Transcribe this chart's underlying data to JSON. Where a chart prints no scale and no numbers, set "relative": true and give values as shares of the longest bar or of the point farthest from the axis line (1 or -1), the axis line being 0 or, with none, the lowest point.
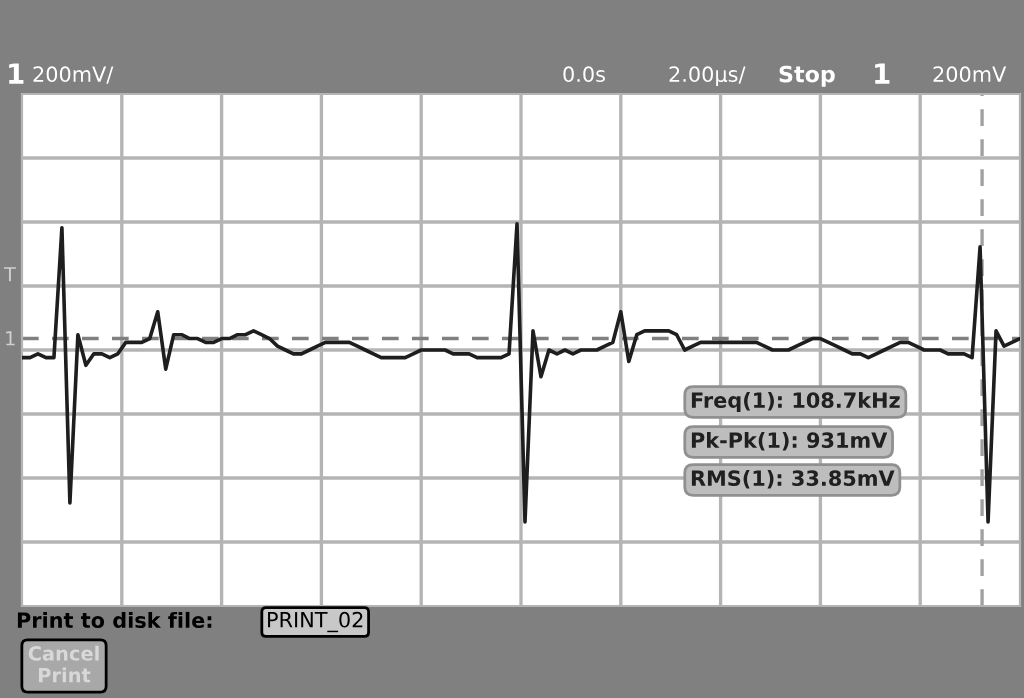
{
  "chart_data": {
    "type": "line",
    "relative": true,
    "grid": true,
    "categories": [
      null,
      null,
      null,
      null,
      null,
      null,
      null,
      null,
      null,
      null,
      null,
      null,
      null,
      null,
      null,
      null,
      null,
      null,
      null,
      null,
      null,
      null,
      null,
      null,
      null,
      null,
      null,
      null,
      null,
      null,
      null,
      null,
      null,
      null,
      null,
      null,
      null,
      null,
      null,
      null,
      null,
      null,
      null,
      null,
      null,
      null,
      null,
      null,
      null,
      null,
      null,
      null,
      null,
      null,
      null,
      null,
      null,
      null,
      null,
      null,
      null,
      null,
      null,
      null,
      null,
      null,
      null,
      null,
      null,
      null,
      null,
      null,
      null,
      null,
      null,
      null,
      null,
      null,
      null,
      null,
      null,
      null,
      null,
      null,
      null,
      null,
      null,
      null,
      null,
      null,
      null,
      null,
      null,
      null,
      null,
      null,
      null,
      null,
      null,
      null,
      null,
      null,
      null,
      null,
      null,
      null,
      null,
      null,
      null,
      null,
      null,
      null,
      null,
      null,
      null,
      null,
      null,
      null,
      null,
      null,
      null,
      null,
      null,
      null,
      null,
      null
    ],
    "series": [
      {
        "color": "#1e1e1e",
        "values": [
          0.65,
          0.65,
          0.66,
          0.65,
          0.65,
          0.99,
          0.27,
          0.71,
          0.63,
          0.66,
          0.66,
          0.65,
          0.66,
          0.69,
          0.69,
          0.69,
          0.7,
          0.77,
          0.62,
          0.71,
          0.71,
          0.7,
          0.7,
          0.69,
          0.69,
          0.7,
          0.7,
          0.71,
          0.71,
          0.72,
          0.71,
          0.7,
          0.68,
          0.67,
          0.66,
          0.66,
          0.67,
          0.68,
          0.69,
          0.69,
          0.69,
          0.69,
          0.68,
          0.67,
          0.66,
          0.65,
          0.65,
          0.65,
          0.65,
          0.66,
          0.67,
          0.67,
          0.67,
          0.67,
          0.66,
          0.66,
          0.66,
          0.65,
          0.65,
          0.65,
          0.65,
          0.66,
          1.0,
          0.22,
          0.72,
          0.6,
          0.67,
          0.66,
          0.67,
          0.66,
          0.67,
          0.67,
          0.67,
          0.68,
          0.69,
          0.77,
          0.64,
          0.71,
          0.72,
          0.72,
          0.72,
          0.72,
          0.71,
          0.67,
          0.68,
          0.69,
          0.69,
          0.69,
          0.69,
          0.69,
          0.69,
          0.69,
          0.69,
          0.68,
          0.67,
          0.67,
          0.67,
          0.68,
          0.69,
          0.7,
          0.7,
          0.69,
          0.68,
          0.67,
          0.66,
          0.66,
          0.65,
          0.66,
          0.67,
          0.68,
          0.69,
          0.69,
          0.68,
          0.67,
          0.67,
          0.67,
          0.66,
          0.66,
          0.66,
          0.65,
          0.94,
          0.22,
          0.72,
          0.68,
          0.69,
          0.7
        ]
      }
    ],
    "ref_lines": [
      {
        "axis": "y",
        "value": 0.7,
        "color": "#808080",
        "line_style": "dashed"
      }
    ],
    "annotations": [
      "1",
      "200mV/",
      "0.0s",
      "2.00µs/",
      "Stop",
      "1",
      "200mV",
      "T",
      "1",
      "Freq(1): 108.7kHz",
      "Pk-Pk(1): 931mV",
      "RMS(1): 33.85mV",
      "Print to disk file:",
      "PRINT_02",
      "Cancel Print"
    ]
  }
}
